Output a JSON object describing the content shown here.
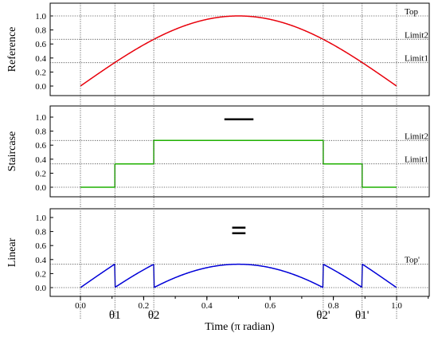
{
  "chart_data": {
    "type": "line",
    "x_label": "Time (π radian)",
    "x_range": [
      -0.1,
      1.1
    ],
    "x_ticks": [
      "0.0",
      "0.2",
      "0.4",
      "0.6",
      "0.8",
      "1.0"
    ],
    "x_tick_values": [
      0.0,
      0.2,
      0.4,
      0.6,
      0.8,
      1.0
    ],
    "theta_marks": [
      {
        "label": "θ1",
        "x": 0.109
      },
      {
        "label": "θ2",
        "x": 0.232
      },
      {
        "label": "θ2'",
        "x": 0.768
      },
      {
        "label": "θ1'",
        "x": 0.891
      }
    ],
    "y_ticks": [
      "0.0",
      "0.2",
      "0.4",
      "0.6",
      "0.8",
      "1.0"
    ],
    "y_tick_values": [
      0.0,
      0.2,
      0.4,
      0.6,
      0.8,
      1.0
    ],
    "y_range": [
      -0.1,
      1.1
    ],
    "operators": [
      "—",
      "="
    ],
    "panels": [
      {
        "name": "reference",
        "y_label": "Reference",
        "color": "#e8000b",
        "ref_lines": [
          {
            "label": "Top",
            "y": 1.0
          },
          {
            "label": "Limit2",
            "y": 0.667
          },
          {
            "label": "Limit1",
            "y": 0.333
          }
        ],
        "series": {
          "kind": "sine",
          "amplitude": 1.0
        }
      },
      {
        "name": "staircase",
        "y_label": "Staircase",
        "color": "#1fb000",
        "ref_lines": [
          {
            "label": "Limit2'",
            "y": 0.667
          },
          {
            "label": "Limit1'",
            "y": 0.333
          },
          {
            "label": "",
            "y": 0.0
          }
        ],
        "series": {
          "kind": "step",
          "x": [
            0.0,
            0.109,
            0.109,
            0.232,
            0.232,
            0.768,
            0.768,
            0.891,
            0.891,
            1.0
          ],
          "y": [
            0.0,
            0.0,
            0.333,
            0.333,
            0.667,
            0.667,
            0.333,
            0.333,
            0.0,
            0.0
          ]
        }
      },
      {
        "name": "linear",
        "y_label": "Linear",
        "color": "#0000d8",
        "ref_lines": [
          {
            "label": "Top'",
            "y": 0.333
          },
          {
            "label": "",
            "y": 0.0
          }
        ],
        "series": {
          "kind": "difference",
          "amplitude": 1.0
        }
      }
    ]
  }
}
